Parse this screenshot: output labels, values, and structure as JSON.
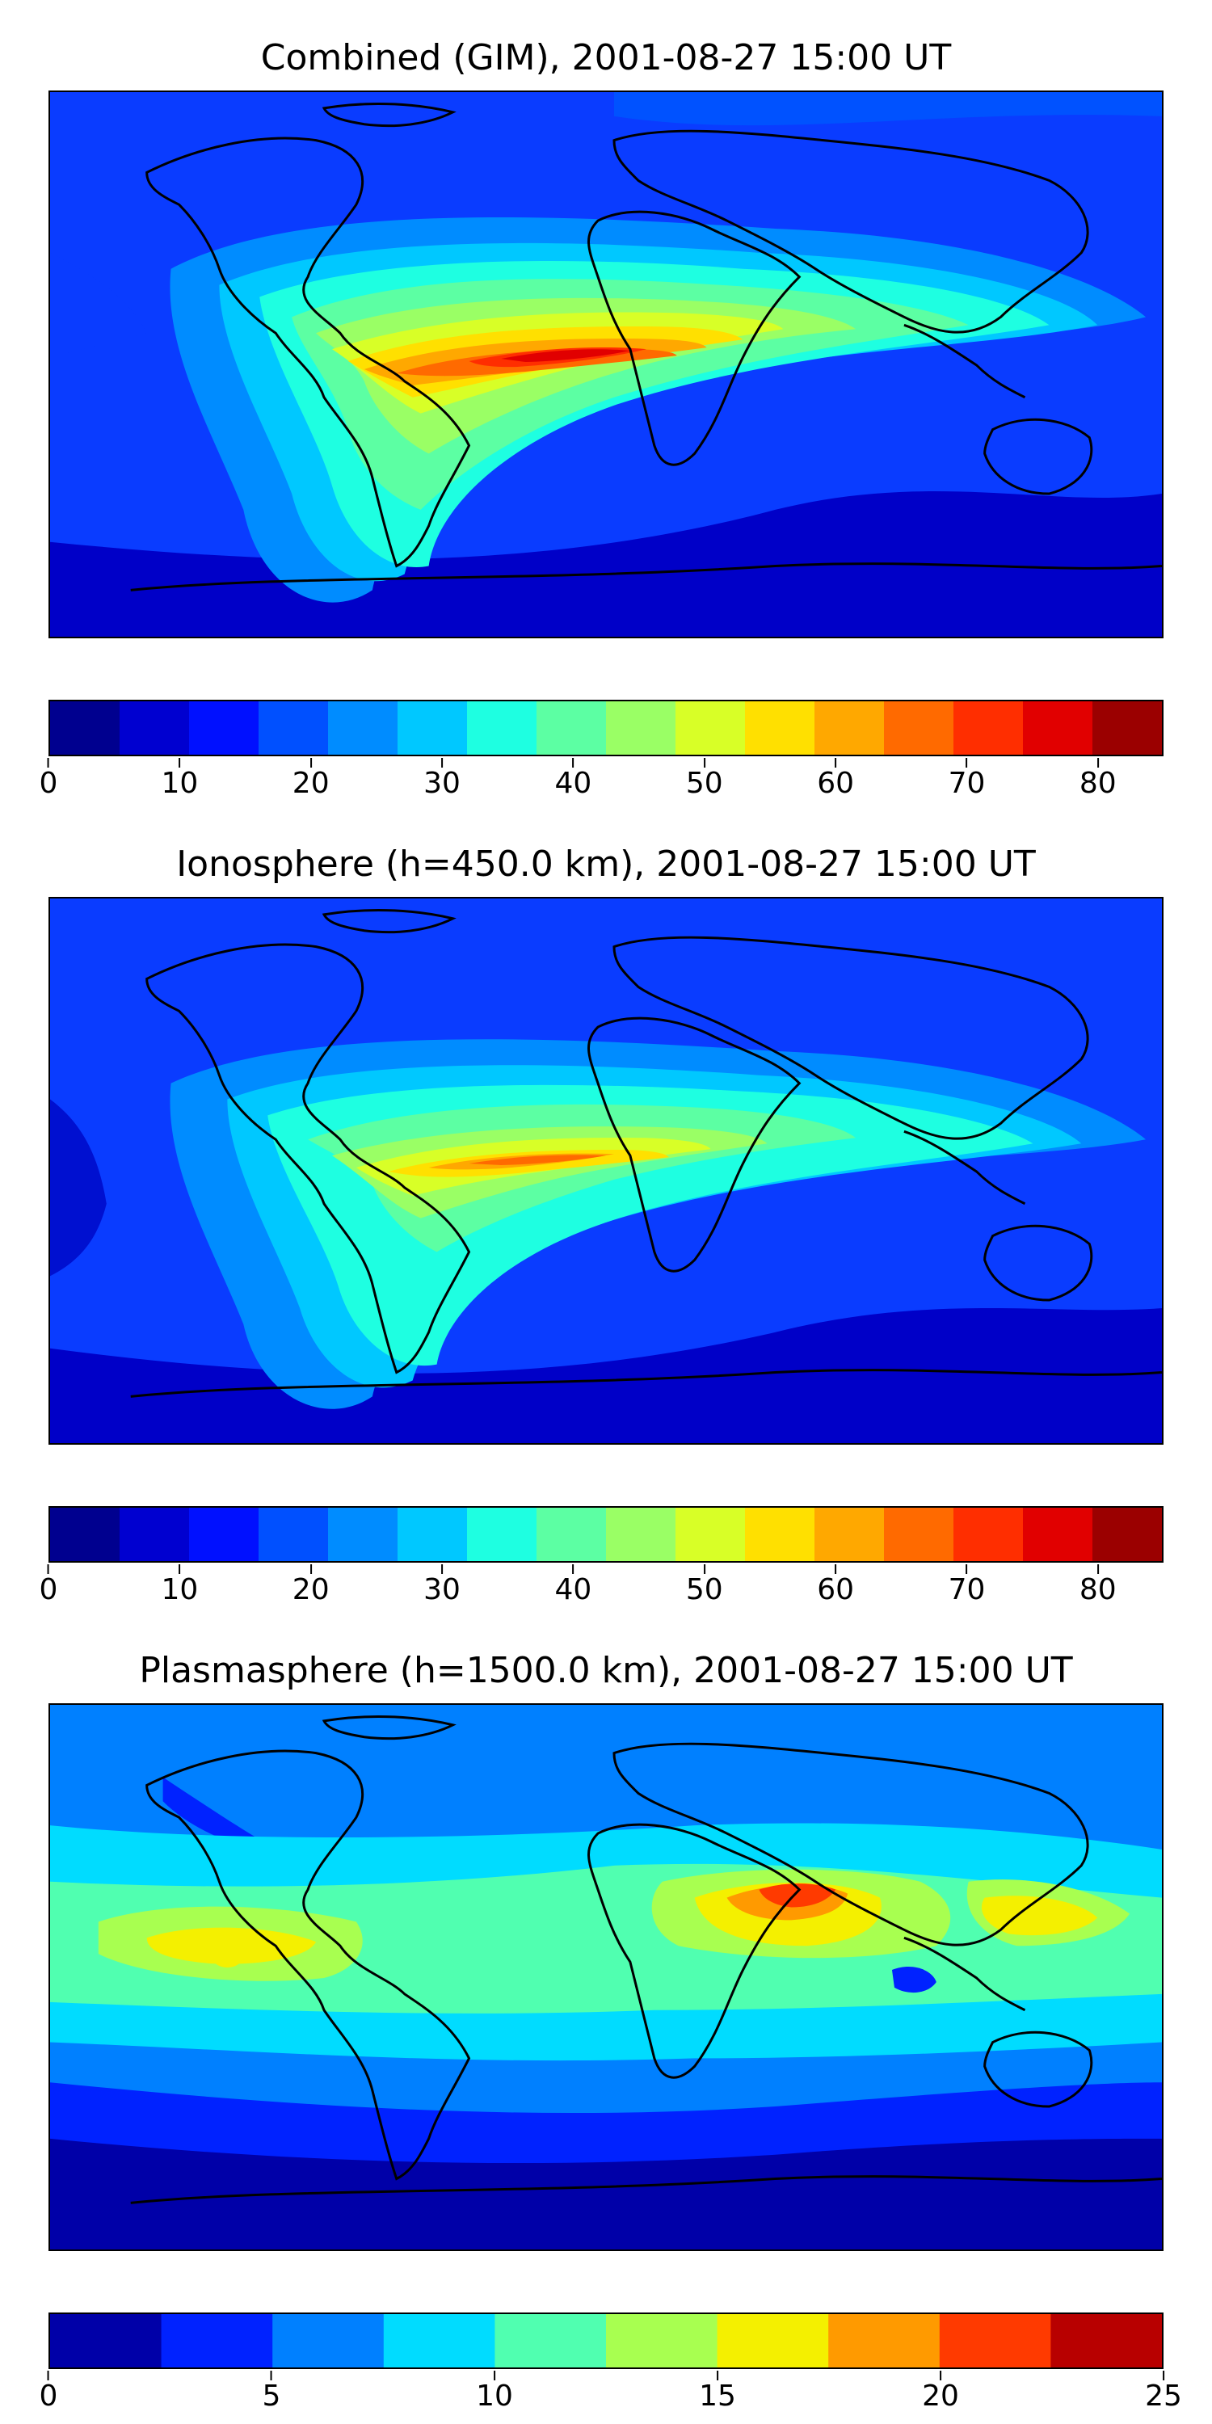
{
  "panels": [
    {
      "title": "Combined (GIM), 2001-08-27 15:00 UT",
      "field": "combined",
      "colorbar": {
        "min": 0,
        "max": 85,
        "ticks": [
          "0",
          "10",
          "20",
          "30",
          "40",
          "50",
          "60",
          "70",
          "80"
        ],
        "tick_values": [
          0,
          10,
          20,
          30,
          40,
          50,
          60,
          70,
          80
        ],
        "colors": [
          "#00008f",
          "#0000d0",
          "#0010ff",
          "#0050ff",
          "#008cff",
          "#00c8ff",
          "#1effe1",
          "#5cffa3",
          "#9aff65",
          "#d8ff27",
          "#ffe000",
          "#ffa800",
          "#ff6a00",
          "#ff2e00",
          "#e10000",
          "#9b0000"
        ]
      }
    },
    {
      "title": "Ionosphere  (h=450.0 km), 2001-08-27 15:00 UT",
      "field": "ionosphere",
      "colorbar": {
        "min": 0,
        "max": 85,
        "ticks": [
          "0",
          "10",
          "20",
          "30",
          "40",
          "50",
          "60",
          "70",
          "80"
        ],
        "tick_values": [
          0,
          10,
          20,
          30,
          40,
          50,
          60,
          70,
          80
        ],
        "colors": [
          "#00008f",
          "#0000d0",
          "#0010ff",
          "#0050ff",
          "#008cff",
          "#00c8ff",
          "#1effe1",
          "#5cffa3",
          "#9aff65",
          "#d8ff27",
          "#ffe000",
          "#ffa800",
          "#ff6a00",
          "#ff2e00",
          "#e10000",
          "#9b0000"
        ]
      }
    },
    {
      "title": "Plasmasphere (h=1500.0 km), 2001-08-27 15:00 UT",
      "field": "plasmasphere",
      "colorbar": {
        "min": 0,
        "max": 25,
        "ticks": [
          "0",
          "5",
          "10",
          "15",
          "20",
          "25"
        ],
        "tick_values": [
          0,
          5,
          10,
          15,
          20,
          25
        ],
        "colors": [
          "#0000a8",
          "#0022ff",
          "#0080ff",
          "#00dcff",
          "#50ffb0",
          "#a8ff50",
          "#f4f000",
          "#ff9a00",
          "#ff3a00",
          "#b80000"
        ]
      }
    }
  ]
}
